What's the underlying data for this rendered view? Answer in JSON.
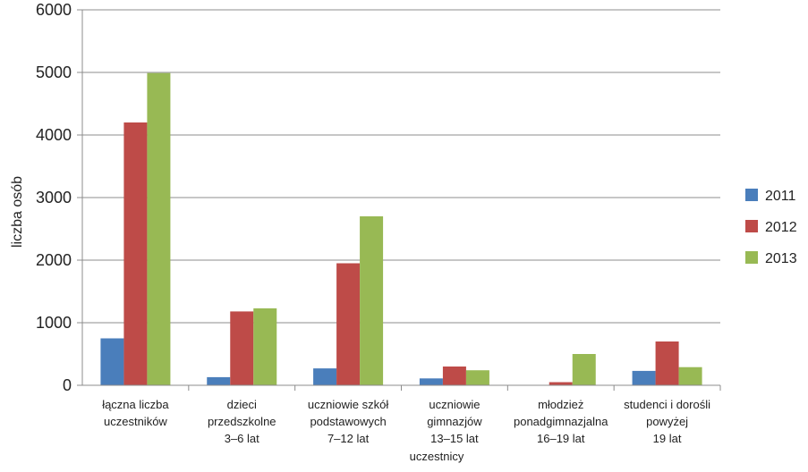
{
  "chart_data": {
    "type": "bar",
    "categories": [
      [
        "łączna liczba",
        "uczestników"
      ],
      [
        "dzieci",
        "przedszkolne",
        "3–6 lat"
      ],
      [
        "uczniowie szkół",
        "podstawowych",
        "7–12 lat"
      ],
      [
        "uczniowie",
        "gimnazjów",
        "13–15 lat"
      ],
      [
        "młodzież",
        "ponadgimnazjalna",
        "16–19 lat"
      ],
      [
        "studenci i dorośli",
        "powyżej",
        "19 lat"
      ]
    ],
    "series": [
      {
        "name": "2011",
        "color": "#4a7ebb",
        "values": [
          750,
          130,
          270,
          110,
          0,
          230
        ]
      },
      {
        "name": "2012",
        "color": "#be4b48",
        "values": [
          4200,
          1180,
          1950,
          300,
          50,
          700
        ]
      },
      {
        "name": "2013",
        "color": "#98b954",
        "values": [
          4990,
          1230,
          2700,
          240,
          500,
          290
        ]
      }
    ],
    "ylim": [
      0,
      6000
    ],
    "yticks": [
      0,
      1000,
      2000,
      3000,
      4000,
      5000,
      6000
    ],
    "xlabel": "uczestnicy",
    "ylabel": "liczba osób",
    "grid": true,
    "legend": "right"
  }
}
